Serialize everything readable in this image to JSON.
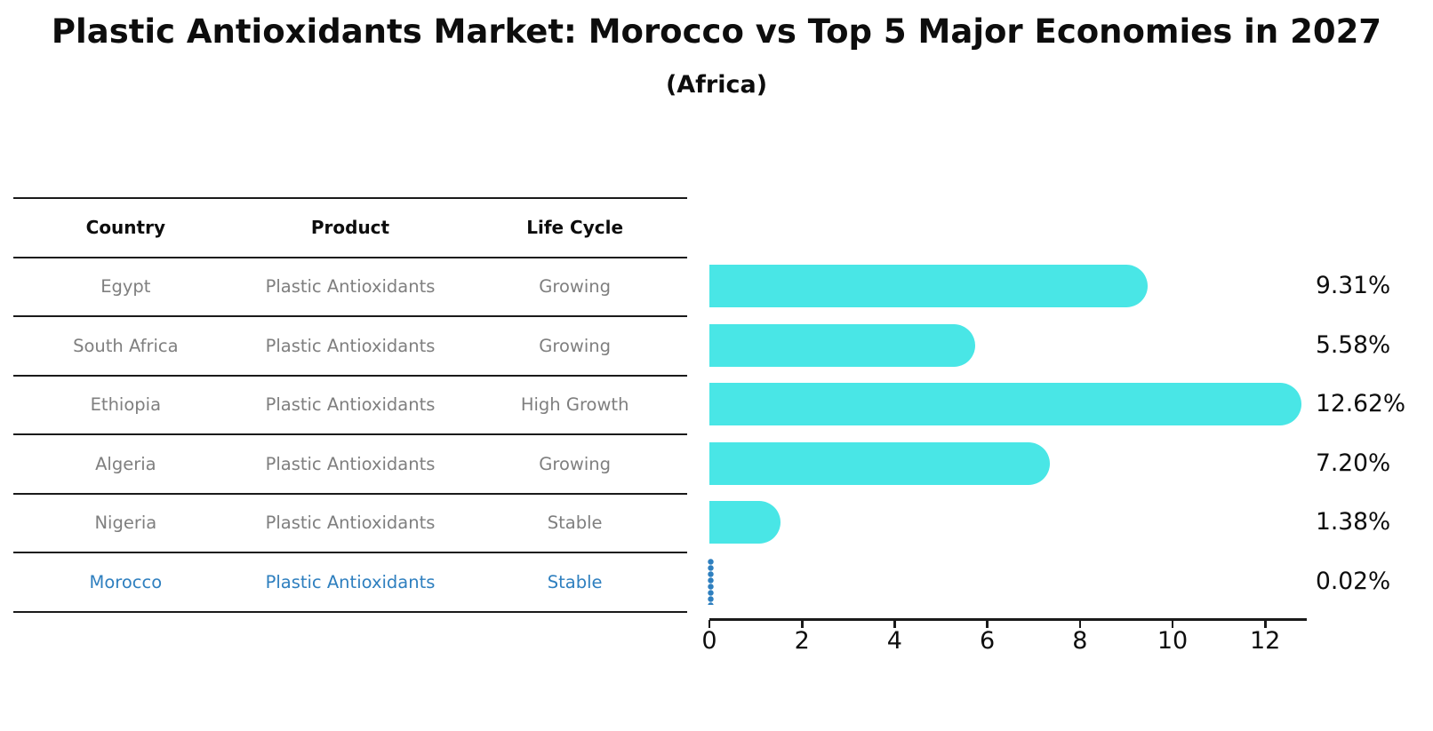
{
  "title": "Plastic Antioxidants Market: Morocco vs Top 5 Major Economies in 2027",
  "subtitle": "(Africa)",
  "table": {
    "headers": [
      "Country",
      "Product",
      "Life Cycle"
    ],
    "rows": [
      {
        "country": "Egypt",
        "product": "Plastic Antioxidants",
        "life_cycle": "Growing",
        "highlighted": false
      },
      {
        "country": "South Africa",
        "product": "Plastic Antioxidants",
        "life_cycle": "Growing",
        "highlighted": false
      },
      {
        "country": "Ethiopia",
        "product": "Plastic Antioxidants",
        "life_cycle": "High Growth",
        "highlighted": false
      },
      {
        "country": "Algeria",
        "product": "Plastic Antioxidants",
        "life_cycle": "Growing",
        "highlighted": false
      },
      {
        "country": "Nigeria",
        "product": "Plastic Antioxidants",
        "life_cycle": "Stable",
        "highlighted": false
      },
      {
        "country": "Morocco",
        "product": "Plastic Antioxidants",
        "life_cycle": "Stable",
        "highlighted": true
      }
    ]
  },
  "chart_data": {
    "type": "bar",
    "orientation": "horizontal",
    "title": "Plastic Antioxidants Market: Morocco vs Top 5 Major Economies in 2027 (Africa)",
    "categories": [
      "Egypt",
      "South Africa",
      "Ethiopia",
      "Algeria",
      "Nigeria",
      "Morocco"
    ],
    "values": [
      9.31,
      5.58,
      12.62,
      7.2,
      1.38,
      0.02
    ],
    "value_labels": [
      "9.31%",
      "5.58%",
      "12.62%",
      "7.20%",
      "1.38%",
      "0.02%"
    ],
    "x_ticks": [
      0,
      2,
      4,
      6,
      8,
      10,
      12
    ],
    "xlim": [
      0,
      13.3
    ],
    "grid": false,
    "legend": false,
    "bar_color": "#49e6e6",
    "highlight_color": "#2e7fbf",
    "highlight_index": 5
  },
  "colors": {
    "background": "#ffffff",
    "text": "#0d0d0d",
    "muted_text": "#7f7f7f",
    "line": "#1a1a1a"
  }
}
